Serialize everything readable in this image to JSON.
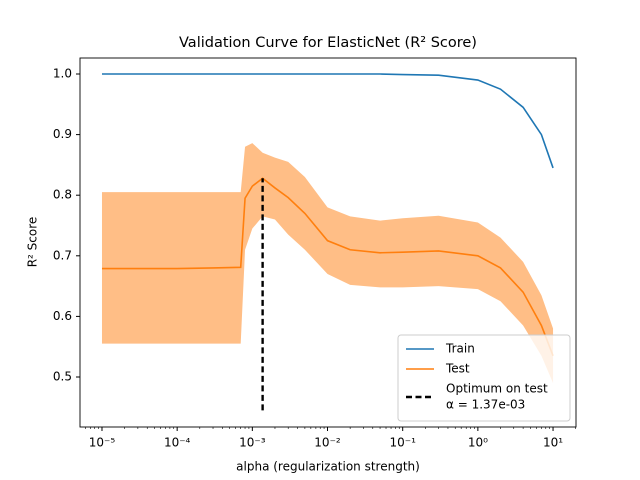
{
  "chart_data": {
    "type": "line",
    "title": "Validation Curve for ElasticNet (R² Score)",
    "x_label": "alpha (regularization strength)",
    "y_label": "R² Score",
    "x": [
      1e-05,
      3e-05,
      0.0001,
      0.0003,
      0.0007,
      0.0008,
      0.001,
      0.00137,
      0.002,
      0.003,
      0.005,
      0.01,
      0.02,
      0.05,
      0.1,
      0.3,
      1,
      2,
      4,
      7,
      10
    ],
    "series": [
      {
        "name": "Train",
        "color": "#1f77b4",
        "values": [
          1,
          1,
          1,
          1,
          1,
          1,
          1,
          1,
          1,
          1,
          1,
          1,
          1,
          1,
          0.999,
          0.998,
          0.99,
          0.975,
          0.945,
          0.9,
          0.845
        ]
      },
      {
        "name": "Test",
        "color": "#ff7f0e",
        "band_color": "#ffbe86",
        "values": [
          0.679,
          0.679,
          0.679,
          0.68,
          0.681,
          0.795,
          0.815,
          0.828,
          0.812,
          0.796,
          0.77,
          0.725,
          0.71,
          0.705,
          0.706,
          0.708,
          0.7,
          0.68,
          0.64,
          0.585,
          0.535
        ],
        "upper": [
          0.805,
          0.805,
          0.805,
          0.805,
          0.805,
          0.88,
          0.886,
          0.87,
          0.862,
          0.855,
          0.83,
          0.78,
          0.765,
          0.758,
          0.762,
          0.766,
          0.755,
          0.73,
          0.69,
          0.635,
          0.58
        ],
        "lower": [
          0.555,
          0.555,
          0.555,
          0.555,
          0.555,
          0.71,
          0.745,
          0.765,
          0.76,
          0.735,
          0.71,
          0.67,
          0.652,
          0.648,
          0.648,
          0.65,
          0.645,
          0.625,
          0.585,
          0.535,
          0.49
        ]
      }
    ],
    "optimum": {
      "name": "Optimum on test",
      "label": "α = 1.37e-03",
      "x": 0.00137,
      "ymin": 0.445,
      "ymax": 0.828,
      "color": "#000000"
    },
    "xscale": "log",
    "xlim": [
      5.1e-06,
      20.2
    ],
    "xticks": [
      {
        "value": 1e-05,
        "label": "10⁻⁵"
      },
      {
        "value": 0.0001,
        "label": "10⁻⁴"
      },
      {
        "value": 0.001,
        "label": "10⁻³"
      },
      {
        "value": 0.01,
        "label": "10⁻²"
      },
      {
        "value": 0.1,
        "label": "10⁻¹"
      },
      {
        "value": 1,
        "label": "10⁰"
      },
      {
        "value": 10,
        "label": "10¹"
      }
    ],
    "ylim": [
      0.4175,
      1.0264
    ],
    "yticks": [
      0.5,
      0.6,
      0.7,
      0.8,
      0.9,
      {
        "value": 1,
        "label": "1.0"
      }
    ],
    "legend": "lower right"
  }
}
